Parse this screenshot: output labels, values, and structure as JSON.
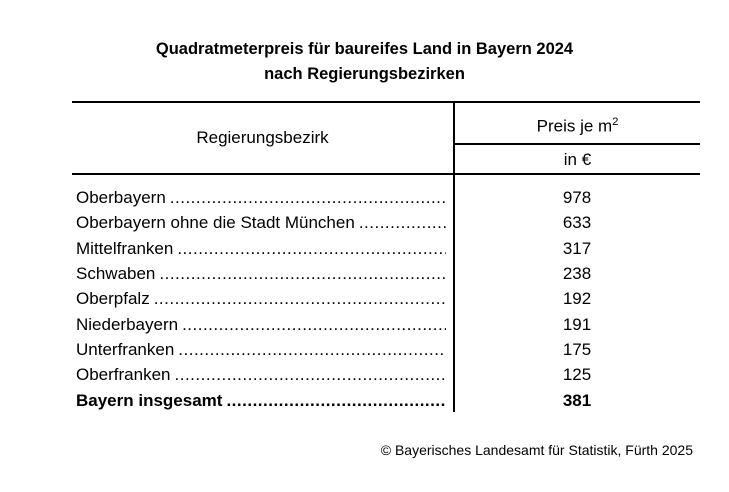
{
  "title_line1": "Quadratmeterpreis für baureifes Land in Bayern 2024",
  "title_line2": "nach Regierungsbezirken",
  "header": {
    "col1": "Regierungsbezirk",
    "col2": "Preis je m",
    "col2_sup": "2",
    "col2_unit": "in €"
  },
  "rows": [
    {
      "label": "Oberbayern",
      "value": "978"
    },
    {
      "label": "Oberbayern ohne die Stadt München",
      "value": "633"
    },
    {
      "label": "Mittelfranken",
      "value": "317"
    },
    {
      "label": "Schwaben",
      "value": "238"
    },
    {
      "label": "Oberpfalz",
      "value": "192"
    },
    {
      "label": "Niederbayern",
      "value": "191"
    },
    {
      "label": "Unterfranken",
      "value": "175"
    },
    {
      "label": "Oberfranken",
      "value": "125"
    }
  ],
  "total": {
    "label": "Bayern insgesamt",
    "value": "381"
  },
  "footer": "© Bayerisches Landesamt für Statistik, Fürth 2025"
}
